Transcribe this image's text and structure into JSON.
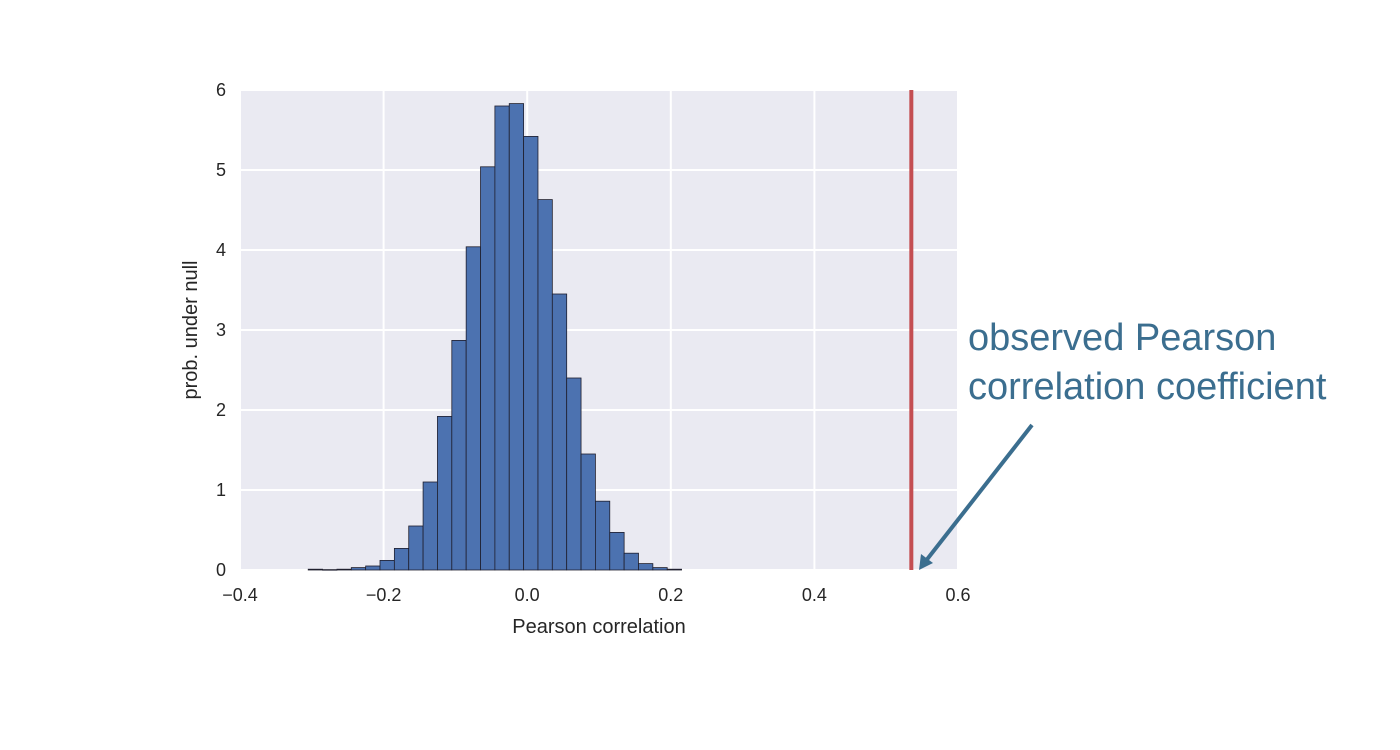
{
  "chart_data": {
    "type": "bar",
    "subtype": "histogram",
    "title": "",
    "xlabel": "Pearson correlation",
    "ylabel": "prob. under null",
    "xlim": [
      -0.4,
      0.6
    ],
    "ylim": [
      0,
      6
    ],
    "xticks": [
      -0.4,
      -0.2,
      0.0,
      0.2,
      0.4,
      0.6
    ],
    "xtick_labels": [
      "−0.4",
      "−0.2",
      "0.0",
      "0.2",
      "0.4",
      "0.6"
    ],
    "yticks": [
      0,
      1,
      2,
      3,
      4,
      5,
      6
    ],
    "ytick_labels": [
      "0",
      "1",
      "2",
      "3",
      "4",
      "5",
      "6"
    ],
    "grid": true,
    "bin_width": 0.02,
    "bins": [
      {
        "start": -0.305,
        "value": 0.01
      },
      {
        "start": -0.285,
        "value": 0.005
      },
      {
        "start": -0.265,
        "value": 0.01
      },
      {
        "start": -0.245,
        "value": 0.03
      },
      {
        "start": -0.225,
        "value": 0.05
      },
      {
        "start": -0.205,
        "value": 0.12
      },
      {
        "start": -0.185,
        "value": 0.27
      },
      {
        "start": -0.165,
        "value": 0.55
      },
      {
        "start": -0.145,
        "value": 1.1
      },
      {
        "start": -0.125,
        "value": 1.92
      },
      {
        "start": -0.105,
        "value": 2.87
      },
      {
        "start": -0.085,
        "value": 4.04
      },
      {
        "start": -0.065,
        "value": 5.04
      },
      {
        "start": -0.045,
        "value": 5.8
      },
      {
        "start": -0.025,
        "value": 5.83
      },
      {
        "start": -0.005,
        "value": 5.42
      },
      {
        "start": 0.015,
        "value": 4.63
      },
      {
        "start": 0.035,
        "value": 3.45
      },
      {
        "start": 0.055,
        "value": 2.4
      },
      {
        "start": 0.075,
        "value": 1.45
      },
      {
        "start": 0.095,
        "value": 0.86
      },
      {
        "start": 0.115,
        "value": 0.47
      },
      {
        "start": 0.135,
        "value": 0.21
      },
      {
        "start": 0.155,
        "value": 0.08
      },
      {
        "start": 0.175,
        "value": 0.03
      },
      {
        "start": 0.195,
        "value": 0.01
      }
    ],
    "observed_line": {
      "x": 0.535
    },
    "annotation": {
      "lines": [
        "observed Pearson",
        "correlation coefficient"
      ]
    },
    "colors": {
      "bar_fill": "#4c72b0",
      "bar_edge": "#1f1f2e",
      "background": "#eaeaf2",
      "grid": "#ffffff",
      "observed_line": "#c44e52",
      "annotation": "#3b6e8f"
    }
  }
}
